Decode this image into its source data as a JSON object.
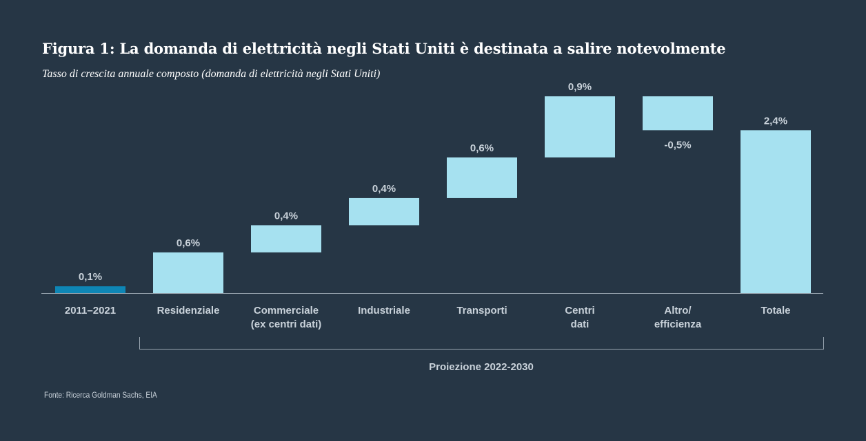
{
  "title": "Figura 1: La domanda di elettricità negli Stati Uniti è destinata a salire notevolmente",
  "subtitle": "Tasso di crescita annuale composto (domanda di elettricità negli Stati Uniti)",
  "source": "Fonte: Ricerca Goldman Sachs, EIA",
  "colors": {
    "background": "#263645",
    "historical_bar": "#0e86b5",
    "projection_bar": "#a6e1f0",
    "axis": "#9aa7b2",
    "text": "#c9d2da"
  },
  "chart_data": {
    "type": "waterfall",
    "categories": [
      [
        "2011–2021"
      ],
      [
        "Residenziale"
      ],
      [
        "Commerciale",
        "(ex centri dati)"
      ],
      [
        "Industriale"
      ],
      [
        "Transporti"
      ],
      [
        "Centri",
        "dati"
      ],
      [
        "Altro/",
        "efficienza"
      ],
      [
        "Totale"
      ]
    ],
    "values": [
      0.1,
      0.6,
      0.4,
      0.4,
      0.6,
      0.9,
      -0.5,
      2.4
    ],
    "labels": [
      "0,1%",
      "0,6%",
      "0,4%",
      "0,4%",
      "0,6%",
      "0,9%",
      "-0,5%",
      "2,4%"
    ],
    "bar_kind": [
      "historical",
      "increment",
      "increment",
      "increment",
      "increment",
      "increment",
      "increment",
      "total"
    ],
    "bracket_label": "Proiezione 2022-2030",
    "bracket_range": [
      1,
      7
    ],
    "ylim": [
      0,
      2.9
    ],
    "grid": false
  }
}
